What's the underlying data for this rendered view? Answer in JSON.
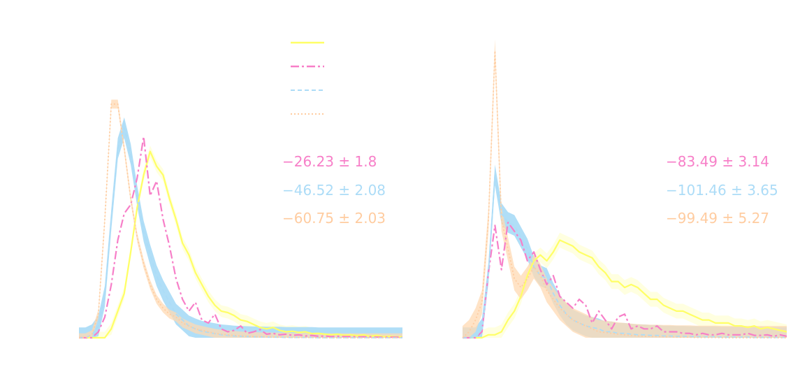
{
  "colors": {
    "yellow": "#ffff66",
    "pink": "#f77fc8",
    "blue": "#acdcf7",
    "orange": "#ffcca0",
    "yellow_band": "#ffffcc",
    "blue_band": "#acdcf7",
    "orange_band": "#ffd9b3"
  },
  "chart_data": [
    {
      "type": "line",
      "title": "",
      "xlabel": "",
      "ylabel": "",
      "xlim": [
        0,
        50
      ],
      "ylim": [
        0,
        1.0
      ],
      "grid": false,
      "legend_placement": "top-right",
      "x": [
        0,
        1,
        2,
        3,
        4,
        5,
        6,
        7,
        8,
        9,
        10,
        11,
        12,
        13,
        14,
        15,
        16,
        17,
        18,
        19,
        20,
        21,
        22,
        23,
        24,
        25,
        26,
        27,
        28,
        29,
        30,
        31,
        32,
        33,
        34,
        35,
        36,
        37,
        38,
        39,
        40,
        41,
        42,
        43,
        44,
        45,
        46,
        47,
        48,
        49,
        50
      ],
      "series": [
        {
          "style": "solid",
          "color": "#ffff66",
          "values": [
            0,
            0,
            0,
            0,
            0,
            0.03,
            0.09,
            0.15,
            0.29,
            0.44,
            0.55,
            0.63,
            0.58,
            0.55,
            0.47,
            0.4,
            0.32,
            0.28,
            0.22,
            0.18,
            0.14,
            0.11,
            0.09,
            0.085,
            0.075,
            0.06,
            0.055,
            0.045,
            0.035,
            0.03,
            0.035,
            0.025,
            0.02,
            0.022,
            0.018,
            0.02,
            0.014,
            0.015,
            0.012,
            0.01,
            0.012,
            0.008,
            0.01,
            0.007,
            0.01,
            0.005,
            0.008,
            0.004,
            0.005,
            0.003,
            0.003
          ],
          "band": 0.02
        },
        {
          "style": "dashdot",
          "color": "#f77fc8",
          "values": [
            0,
            0,
            0,
            0.02,
            0.07,
            0.18,
            0.33,
            0.42,
            0.45,
            0.54,
            0.68,
            0.48,
            0.53,
            0.4,
            0.31,
            0.2,
            0.13,
            0.09,
            0.12,
            0.06,
            0.05,
            0.08,
            0.03,
            0.02,
            0.025,
            0.04,
            0.015,
            0.02,
            0.028,
            0.012,
            0.015,
            0.01,
            0.012,
            0.008,
            0.01,
            0.006,
            0.008,
            0.005,
            0.006,
            0.004,
            0.005,
            0.004,
            0.004,
            0.003,
            0.003,
            0.003,
            0.002,
            0.002,
            0.002,
            0.002,
            0.001
          ]
        },
        {
          "style": "dashed",
          "color": "#acdcf7",
          "values": [
            0,
            0,
            0.01,
            0.04,
            0.14,
            0.4,
            0.64,
            0.71,
            0.62,
            0.48,
            0.36,
            0.28,
            0.21,
            0.16,
            0.12,
            0.08,
            0.06,
            0.04,
            0.03,
            0.022,
            0.018,
            0.014,
            0.01,
            0.008,
            0.006,
            0.005,
            0.004,
            0.003,
            0.003,
            0.002,
            0.002,
            0.002,
            0.001,
            0.001,
            0.001,
            0.001,
            0.001,
            0,
            0,
            0,
            0,
            0,
            0,
            0,
            0,
            0,
            0,
            0,
            0,
            0,
            0
          ],
          "band": 0.035
        },
        {
          "style": "dotted",
          "color": "#ffcca0",
          "values": [
            0,
            0,
            0.01,
            0.08,
            0.4,
            0.79,
            0.79,
            0.64,
            0.47,
            0.34,
            0.25,
            0.18,
            0.13,
            0.1,
            0.08,
            0.07,
            0.05,
            0.04,
            0.03,
            0.025,
            0.02,
            0.015,
            0.012,
            0.01,
            0.008,
            0.006,
            0.005,
            0.004,
            0.003,
            0.003,
            0.002,
            0.002,
            0.002,
            0.001,
            0.001,
            0.001,
            0.001,
            0,
            0,
            0,
            0,
            0,
            0,
            0,
            0,
            0,
            0,
            0,
            0,
            0,
            0
          ],
          "band": 0.015
        }
      ],
      "annotations": [
        "−26.23 ± 1.8",
        "−46.52 ± 2.08",
        "−60.75 ± 2.03"
      ]
    },
    {
      "type": "line",
      "title": "",
      "xlabel": "",
      "ylabel": "",
      "xlim": [
        0,
        50
      ],
      "ylim": [
        0,
        1.0
      ],
      "grid": false,
      "x": [
        0,
        1,
        2,
        3,
        4,
        5,
        6,
        7,
        8,
        9,
        10,
        11,
        12,
        13,
        14,
        15,
        16,
        17,
        18,
        19,
        20,
        21,
        22,
        23,
        24,
        25,
        26,
        27,
        28,
        29,
        30,
        31,
        32,
        33,
        34,
        35,
        36,
        37,
        38,
        39,
        40,
        41,
        42,
        43,
        44,
        45,
        46,
        47,
        48,
        49,
        50
      ],
      "series": [
        {
          "style": "solid",
          "color": "#ffff66",
          "values": [
            0,
            0,
            0,
            0,
            0.01,
            0.01,
            0.02,
            0.06,
            0.09,
            0.14,
            0.21,
            0.26,
            0.28,
            0.26,
            0.29,
            0.33,
            0.32,
            0.31,
            0.29,
            0.28,
            0.27,
            0.24,
            0.22,
            0.19,
            0.19,
            0.17,
            0.18,
            0.17,
            0.15,
            0.13,
            0.13,
            0.11,
            0.1,
            0.09,
            0.09,
            0.08,
            0.07,
            0.06,
            0.06,
            0.05,
            0.05,
            0.05,
            0.04,
            0.04,
            0.035,
            0.04,
            0.03,
            0.035,
            0.03,
            0.025,
            0.02
          ],
          "band": 0.025
        },
        {
          "style": "dashdot",
          "color": "#f77fc8",
          "values": [
            0,
            0,
            0,
            0.02,
            0.22,
            0.38,
            0.23,
            0.39,
            0.36,
            0.33,
            0.26,
            0.29,
            0.23,
            0.18,
            0.21,
            0.14,
            0.12,
            0.1,
            0.13,
            0.11,
            0.05,
            0.09,
            0.06,
            0.03,
            0.07,
            0.08,
            0.03,
            0.04,
            0.03,
            0.03,
            0.04,
            0.02,
            0.02,
            0.02,
            0.015,
            0.015,
            0.01,
            0.015,
            0.01,
            0.01,
            0.015,
            0.01,
            0.01,
            0.01,
            0.015,
            0.008,
            0.008,
            0.01,
            0.005,
            0.01,
            0.005
          ]
        },
        {
          "style": "dashed",
          "color": "#acdcf7",
          "values": [
            0,
            0,
            0,
            0.03,
            0.22,
            0.55,
            0.42,
            0.39,
            0.38,
            0.34,
            0.3,
            0.24,
            0.21,
            0.2,
            0.15,
            0.11,
            0.08,
            0.06,
            0.05,
            0.04,
            0.035,
            0.03,
            0.02,
            0.02,
            0.015,
            0.015,
            0.012,
            0.01,
            0.01,
            0.008,
            0.008,
            0.006,
            0.006,
            0.005,
            0.005,
            0.004,
            0.004,
            0.003,
            0.003,
            0.003,
            0.002,
            0.002,
            0.002,
            0.002,
            0.002,
            0.001,
            0.001,
            0.001,
            0.001,
            0.001,
            0.001
          ],
          "band": 0.035
        },
        {
          "style": "dotted",
          "color": "#ffcca0",
          "values": [
            0,
            0.02,
            0.06,
            0.12,
            0.4,
            0.97,
            0.4,
            0.3,
            0.2,
            0.17,
            0.2,
            0.24,
            0.21,
            0.16,
            0.13,
            0.1,
            0.08,
            0.06,
            0.05,
            0.04,
            0.03,
            0.02,
            0.018,
            0.015,
            0.012,
            0.01,
            0.008,
            0.006,
            0.005,
            0.004,
            0.004,
            0.003,
            0.003,
            0.002,
            0.002,
            0.002,
            0.001,
            0.001,
            0.001,
            0.001,
            0,
            0,
            0,
            0,
            0,
            0,
            0,
            0,
            0,
            0,
            0
          ],
          "band": 0.04
        }
      ],
      "annotations": [
        "−83.49 ± 3.14",
        "−101.46 ± 3.65",
        "−99.49 ± 5.27"
      ]
    }
  ]
}
